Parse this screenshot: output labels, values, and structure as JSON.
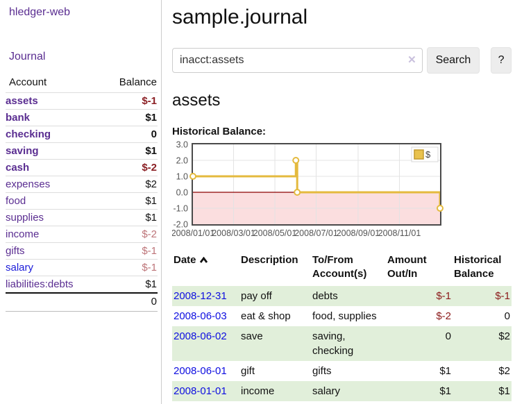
{
  "sidebar": {
    "brand": "hledger-web",
    "nav": {
      "journal": "Journal"
    },
    "accounts_table": {
      "account_header": "Account",
      "balance_header": "Balance",
      "rows": [
        {
          "account": "assets",
          "balance": "$-1"
        },
        {
          "account": "bank",
          "balance": "$1"
        },
        {
          "account": "checking",
          "balance": "0"
        },
        {
          "account": "saving",
          "balance": "$1"
        },
        {
          "account": "cash",
          "balance": "$-2"
        },
        {
          "account": "expenses",
          "balance": "$2"
        },
        {
          "account": "food",
          "balance": "$1"
        },
        {
          "account": "supplies",
          "balance": "$1"
        },
        {
          "account": "income",
          "balance": "$-2"
        },
        {
          "account": "gifts",
          "balance": "$-1"
        },
        {
          "account": "salary",
          "balance": "$-1"
        },
        {
          "account": "liabilities:debts",
          "balance": "$1"
        }
      ],
      "total": "0"
    }
  },
  "header": {
    "title": "sample.journal"
  },
  "search": {
    "value": "inacct:assets",
    "clear_icon": "✕",
    "search_button": "Search",
    "help_button": "?"
  },
  "account_view": {
    "title": "assets",
    "chart_heading": "Historical Balance:"
  },
  "chart_data": {
    "type": "line",
    "step": true,
    "title": "Historical Balance:",
    "x_range": [
      "2008-01-01",
      "2008-12-31"
    ],
    "ylim": [
      -2,
      3
    ],
    "y_ticks": [
      "3.0",
      "2.0",
      "1.0",
      "0.0",
      "-1.0",
      "-2.0"
    ],
    "x_ticks": [
      "2008/01/01",
      "2008/03/01",
      "2008/05/01",
      "2008/07/01",
      "2008/09/01",
      "2008/11/01"
    ],
    "series": [
      {
        "name": "$",
        "color": "#e4ba3e",
        "points": [
          [
            "2008-01-01",
            1
          ],
          [
            "2008-06-01",
            2
          ],
          [
            "2008-06-03",
            0
          ],
          [
            "2008-12-31",
            -1
          ]
        ]
      }
    ],
    "legend": {
      "label": "$",
      "position": "top-right"
    },
    "grid": true,
    "grid_color": "#e3e3e3",
    "zero_line_color": "#8b0000",
    "negative_region_fill": "#fbdedf",
    "marker_fill": "#ffffff",
    "legend_swatch_fill": "#e9c24d",
    "legend_swatch_border": "#c29a2e"
  },
  "register": {
    "headers": {
      "date": "Date",
      "description": "Description",
      "accounts": "To/From Account(s)",
      "amount": "Amount Out/In",
      "balance": "Historical Balance"
    },
    "sort": {
      "column": "date",
      "direction": "ascending"
    },
    "rows": [
      {
        "date": "2008-12-31",
        "description": "pay off",
        "accounts": "debts",
        "amount": "$-1",
        "balance": "$-1"
      },
      {
        "date": "2008-06-03",
        "description": "eat & shop",
        "accounts": "food, supplies",
        "amount": "$-2",
        "balance": "0"
      },
      {
        "date": "2008-06-02",
        "description": "save",
        "accounts": "saving, checking",
        "amount": "0",
        "balance": "$2"
      },
      {
        "date": "2008-06-01",
        "description": "gift",
        "accounts": "gifts",
        "amount": "$1",
        "balance": "$2"
      },
      {
        "date": "2008-01-01",
        "description": "income",
        "accounts": "salary",
        "amount": "$1",
        "balance": "$1"
      }
    ]
  }
}
